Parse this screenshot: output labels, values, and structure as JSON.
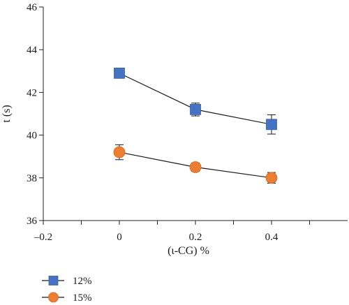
{
  "chart_data": {
    "type": "line",
    "title": "",
    "xlabel": "(ι-CG) %",
    "ylabel": "t (s)",
    "xlim": [
      -0.2,
      0.6
    ],
    "ylim": [
      36,
      46
    ],
    "x_ticks": [
      -0.2,
      0,
      0.2,
      0.4
    ],
    "x_tick_labels": [
      "–0.2",
      "0",
      "0.2",
      "0.4"
    ],
    "x_minor_ticks": [
      -0.1,
      0.1,
      0.3,
      0.5
    ],
    "y_ticks": [
      36,
      38,
      40,
      42,
      44,
      46
    ],
    "y_tick_labels": [
      "36",
      "38",
      "40",
      "42",
      "44",
      "46"
    ],
    "grid": false,
    "legend_position": "bottom-left",
    "series": [
      {
        "name": "12%",
        "marker": "square",
        "color": "#4472c4",
        "x": [
          0,
          0.2,
          0.4
        ],
        "y": [
          42.9,
          41.2,
          40.5
        ],
        "error": [
          0.15,
          0.3,
          0.45
        ]
      },
      {
        "name": "15%",
        "marker": "circle",
        "color": "#ed7d31",
        "x": [
          0,
          0.2,
          0.4
        ],
        "y": [
          39.2,
          38.5,
          38.0
        ],
        "error": [
          0.35,
          0.2,
          0.25
        ]
      }
    ]
  }
}
